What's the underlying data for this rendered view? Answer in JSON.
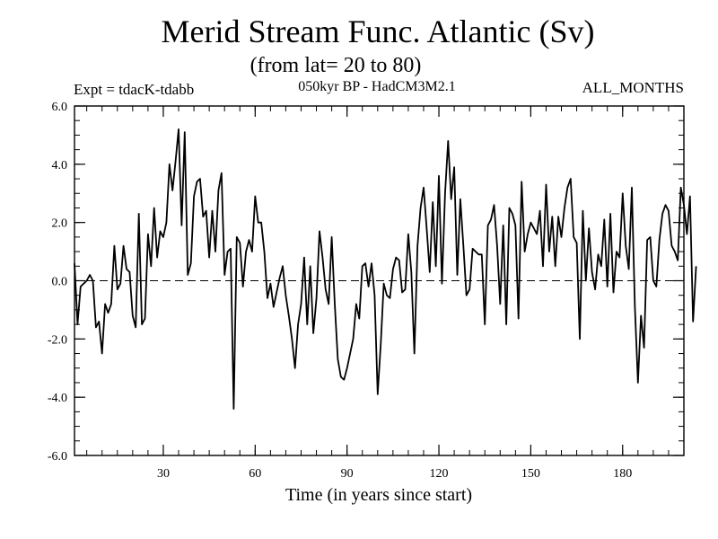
{
  "chart_data": {
    "type": "line",
    "title": "Merid Stream Func. Atlantic (Sv)",
    "subtitle": "(from lat= 20 to 80)",
    "annotations": {
      "left": "Expt = tdacK-tdabb",
      "center": "050kyr BP - HadCM3M2.1",
      "right": "ALL_MONTHS"
    },
    "xlabel": "Time (in years since start)",
    "ylabel": "",
    "xlim": [
      1,
      200
    ],
    "ylim": [
      -6.0,
      6.0
    ],
    "xticks": [
      30,
      60,
      90,
      120,
      150,
      180
    ],
    "xtick_labels": [
      "30",
      "60",
      "90",
      "120",
      "150",
      "180"
    ],
    "yticks": [
      -6,
      -4,
      -2,
      0,
      2,
      4,
      6
    ],
    "ytick_labels": [
      "-6.0",
      "-4.0",
      "-2.0",
      "0.0",
      "2.0",
      "4.0",
      "6.0"
    ],
    "reference_line": {
      "y": 0,
      "style": "dashed"
    },
    "series": [
      {
        "name": "tdacK-tdabb",
        "x_start": 1,
        "x_step": 1,
        "values": [
          0.6,
          -1.5,
          -0.2,
          -0.1,
          0.0,
          0.2,
          0.0,
          -1.6,
          -1.4,
          -2.5,
          -0.8,
          -1.1,
          -0.8,
          1.2,
          -0.3,
          -0.1,
          1.2,
          0.4,
          0.3,
          -1.2,
          -1.6,
          2.3,
          -1.5,
          -1.3,
          1.6,
          0.5,
          2.5,
          0.8,
          1.7,
          1.5,
          2.0,
          4.0,
          3.1,
          4.1,
          5.2,
          1.9,
          5.1,
          0.2,
          0.6,
          2.9,
          3.4,
          3.5,
          2.2,
          2.4,
          0.8,
          2.4,
          1.0,
          3.1,
          3.7,
          0.2,
          1.0,
          1.1,
          -4.4,
          1.5,
          1.3,
          -0.2,
          1.0,
          1.4,
          1.0,
          2.9,
          2.0,
          2.0,
          1.0,
          -0.6,
          -0.1,
          -0.9,
          -0.4,
          0.1,
          0.5,
          -0.5,
          -1.2,
          -2.0,
          -3.0,
          -1.5,
          -0.8,
          0.8,
          -1.5,
          0.5,
          -1.8,
          -0.6,
          1.7,
          0.8,
          -0.3,
          -0.8,
          1.5,
          -0.8,
          -2.7,
          -3.3,
          -3.4,
          -3.0,
          -2.5,
          -2.0,
          -0.8,
          -1.3,
          0.5,
          0.6,
          -0.2,
          0.6,
          -0.5,
          -3.9,
          -2.2,
          -0.1,
          -0.5,
          -0.6,
          0.4,
          0.8,
          0.7,
          -0.4,
          -0.3,
          1.6,
          0.3,
          -2.5,
          1.2,
          2.5,
          3.2,
          1.8,
          0.3,
          2.7,
          0.5,
          3.6,
          -0.1,
          3.0,
          4.8,
          2.8,
          3.9,
          0.2,
          2.8,
          1.2,
          -0.5,
          -0.3,
          1.1,
          1.0,
          0.9,
          0.9,
          -1.5,
          1.9,
          2.1,
          2.6,
          1.2,
          -0.8,
          1.9,
          -1.5,
          2.5,
          2.3,
          1.9,
          -1.3,
          3.4,
          1.0,
          1.6,
          2.0,
          1.8,
          1.6,
          2.4,
          0.5,
          3.3,
          1.0,
          2.2,
          0.5,
          2.2,
          1.5,
          2.5,
          3.2,
          3.5,
          1.5,
          1.3,
          -2.0,
          2.4,
          0.0,
          1.8,
          0.3,
          -0.3,
          0.9,
          0.5,
          2.1,
          -0.2,
          2.3,
          -0.4,
          1.0,
          0.8,
          3.0,
          1.2,
          0.4,
          3.2,
          -0.9,
          -3.5,
          -1.2,
          -2.3,
          1.4,
          1.5,
          0.0,
          -0.2,
          1.4,
          2.3,
          2.6,
          2.4,
          1.2,
          1.0,
          0.7,
          3.2,
          2.6,
          1.6,
          2.9,
          -1.4,
          0.5
        ]
      }
    ]
  }
}
